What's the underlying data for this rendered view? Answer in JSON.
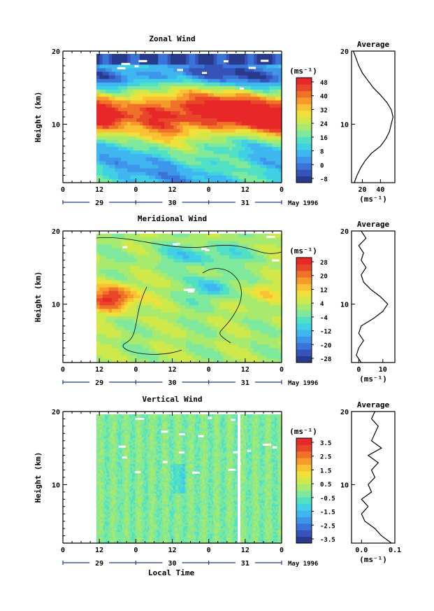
{
  "figure": {
    "xlabel": "Local Time",
    "month_label": "May 1996"
  },
  "chart_data": [
    {
      "type": "heatmap",
      "title": "Zonal Wind",
      "ylabel": "Height (km)",
      "ylim": [
        2,
        20
      ],
      "yticks": [
        10,
        20
      ],
      "x_ticks_hour": [
        "0",
        "12",
        "0",
        "12",
        "0",
        "12",
        "0"
      ],
      "x_days": [
        "29",
        "30",
        "31"
      ],
      "colorbar": {
        "unit": "(ms⁻¹)",
        "min": -8,
        "max": 48,
        "ticks": [
          "48",
          "40",
          "32",
          "24",
          "16",
          "8",
          "0",
          "-8"
        ],
        "colors": [
          "#283a8c",
          "#3553b8",
          "#3a74d8",
          "#3e96ea",
          "#3fb6f0",
          "#3fd0e6",
          "#52e0c4",
          "#7ee89c",
          "#a7ea6e",
          "#cfe84a",
          "#f0e03a",
          "#fac132",
          "#f79a2c",
          "#f07228",
          "#e84628",
          "#e82828"
        ]
      },
      "average_profile": {
        "title": "Average",
        "xticks": [
          "20",
          "40"
        ],
        "xlabel": "(ms⁻¹)",
        "x_range": [
          8,
          56
        ],
        "heights": [
          2,
          3,
          4,
          5,
          6,
          7,
          8,
          9,
          10,
          11,
          12,
          13,
          14,
          15,
          16,
          17,
          18,
          19,
          20
        ],
        "values": [
          11,
          14,
          18,
          23,
          30,
          40,
          46,
          50,
          52,
          54,
          52,
          47,
          40,
          32,
          26,
          20,
          16,
          13,
          10
        ]
      }
    },
    {
      "type": "heatmap",
      "title": "Meridional Wind",
      "ylabel": "Height (km)",
      "ylim": [
        2,
        20
      ],
      "yticks": [
        10,
        20
      ],
      "x_ticks_hour": [
        "0",
        "12",
        "0",
        "12",
        "0",
        "12",
        "0"
      ],
      "x_days": [
        "29",
        "30",
        "31"
      ],
      "colorbar": {
        "unit": "(ms⁻¹)",
        "min": -28,
        "max": 28,
        "ticks": [
          "28",
          "20",
          "12",
          "4",
          "-4",
          "-12",
          "-20",
          "-28"
        ],
        "colors": [
          "#283a8c",
          "#3553b8",
          "#3a74d8",
          "#3e96ea",
          "#3fb6f0",
          "#3fd0e6",
          "#52e0c4",
          "#7ee89c",
          "#a7ea6e",
          "#cfe84a",
          "#f0e03a",
          "#fac132",
          "#f79a2c",
          "#f07228",
          "#e84628",
          "#e82828"
        ]
      },
      "average_profile": {
        "title": "Average",
        "xticks": [
          "0",
          "10"
        ],
        "xlabel": "(ms⁻¹)",
        "x_range": [
          -3,
          15
        ],
        "heights": [
          2,
          3,
          4,
          5,
          6,
          7,
          8,
          9,
          10,
          11,
          12,
          13,
          14,
          15,
          16,
          17,
          18,
          19,
          20
        ],
        "values": [
          1,
          -1,
          0,
          2,
          0,
          1,
          6,
          10,
          12,
          9,
          5,
          2,
          1,
          3,
          1,
          2,
          0,
          3,
          1
        ]
      }
    },
    {
      "type": "heatmap",
      "title": "Vertical Wind",
      "ylabel": "Height (km)",
      "ylim": [
        2,
        20
      ],
      "yticks": [
        10,
        20
      ],
      "x_ticks_hour": [
        "0",
        "12",
        "0",
        "12",
        "0",
        "12",
        "0"
      ],
      "x_days": [
        "29",
        "30",
        "31"
      ],
      "colorbar": {
        "unit": "(ms⁻¹)",
        "min": -4,
        "max": 4,
        "ticks": [
          "3.5",
          "2.5",
          "1.5",
          "0.5",
          "-0.5",
          "-1.5",
          "-2.5",
          "-3.5"
        ],
        "colors": [
          "#283a8c",
          "#3553b8",
          "#3a74d8",
          "#3e96ea",
          "#3fb6f0",
          "#3fd0e6",
          "#52e0c4",
          "#7ee89c",
          "#a7ea6e",
          "#cfe84a",
          "#f0e03a",
          "#fac132",
          "#f79a2c",
          "#f07228",
          "#e84628",
          "#e82828"
        ]
      },
      "average_profile": {
        "title": "Average",
        "xticks": [
          "0.0",
          "0.1"
        ],
        "xlabel": "(ms⁻¹)",
        "x_range": [
          -0.03,
          0.1
        ],
        "heights": [
          2,
          3,
          4,
          5,
          6,
          7,
          8,
          9,
          10,
          11,
          12,
          13,
          14,
          15,
          16,
          17,
          18,
          19,
          20
        ],
        "values": [
          0.09,
          0.06,
          0.04,
          0.01,
          0.0,
          0.02,
          0.0,
          0.03,
          0.02,
          0.04,
          0.03,
          0.05,
          0.02,
          0.06,
          0.03,
          0.04,
          0.05,
          0.03,
          0.04
        ]
      }
    }
  ]
}
